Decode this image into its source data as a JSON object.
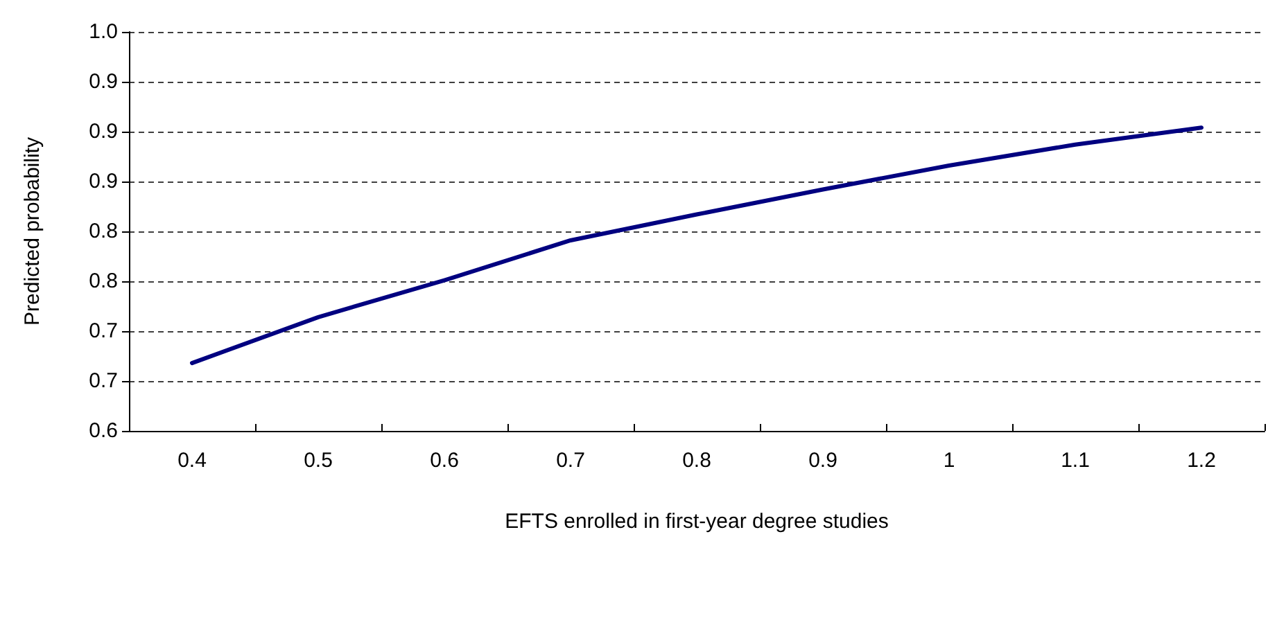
{
  "chart_data": {
    "type": "line",
    "xlabel": "EFTS enrolled in first-year degree studies",
    "ylabel": "Predicted probability",
    "categories": [
      "0.4",
      "0.5",
      "0.6",
      "0.7",
      "0.8",
      "0.9",
      "1",
      "1.1",
      "1.2"
    ],
    "series": [
      {
        "color": "#000080",
        "values": [
          0.668,
          0.714,
          0.751,
          0.791,
          0.817,
          0.842,
          0.866,
          0.887,
          0.904
        ]
      }
    ],
    "ylim": [
      0.6,
      1.0
    ],
    "yticks": [
      {
        "value": 0.6,
        "label": "0.6"
      },
      {
        "value": 0.65,
        "label": "0.7"
      },
      {
        "value": 0.7,
        "label": "0.7"
      },
      {
        "value": 0.75,
        "label": "0.8"
      },
      {
        "value": 0.8,
        "label": "0.8"
      },
      {
        "value": 0.85,
        "label": "0.9"
      },
      {
        "value": 0.9,
        "label": "0.9"
      },
      {
        "value": 0.95,
        "label": "0.9"
      },
      {
        "value": 1.0,
        "label": "1.0"
      }
    ],
    "grid": "y",
    "marker": "none",
    "line_style": "solid"
  }
}
